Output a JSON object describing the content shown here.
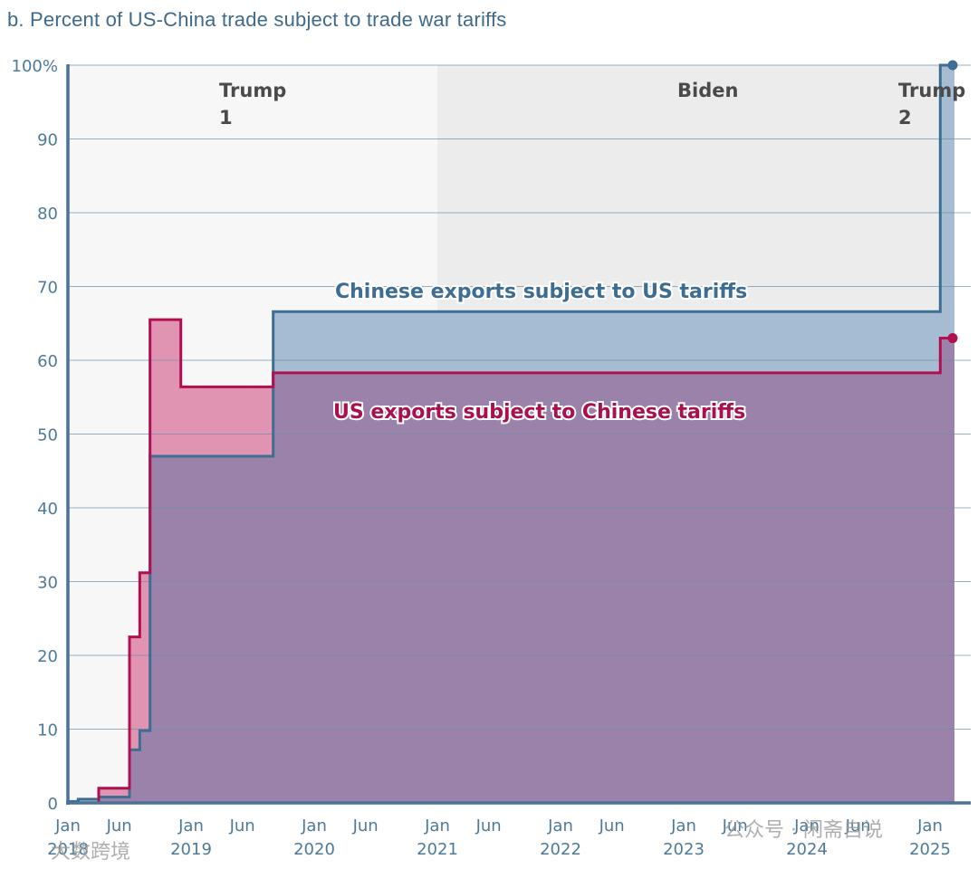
{
  "title": "b. Percent of US-China trade subject to trade war tariffs",
  "colors": {
    "blue_line": "#3f6d93",
    "blue_fill": "#a6bcd2",
    "pink_line": "#b0104f",
    "pink_fill": "#e094b2",
    "overlap_fill": "#9a82aa",
    "trump1_bg": "#f7f7f8",
    "biden_bg": "#ececed",
    "axis": "#4a7296",
    "grid": "#6e8fa8",
    "tick_text": "#4c7a9a"
  },
  "eras": [
    {
      "label_line1": "Trump",
      "label_line2": "1"
    },
    {
      "label_line1": "Biden",
      "label_line2": ""
    },
    {
      "label_line1": "Trump",
      "label_line2": "2"
    }
  ],
  "series_labels": {
    "chinese": "Chinese exports subject to US tariffs",
    "us": "US exports subject to Chinese tariffs"
  },
  "watermarks": {
    "left": "大数跨境",
    "right": "公众号 · 闲斋自说"
  },
  "chart_data": {
    "type": "area",
    "title": "b. Percent of US-China trade subject to trade war tariffs",
    "xlabel": "",
    "ylabel": "",
    "ylim": [
      0,
      100
    ],
    "yticks": [
      "0",
      "10",
      "20",
      "30",
      "40",
      "50",
      "60",
      "70",
      "80",
      "90",
      "100%"
    ],
    "xticks": [
      {
        "month": "Jan",
        "year": "2018"
      },
      {
        "month": "Jun",
        "year": ""
      },
      {
        "month": "Jan",
        "year": "2019"
      },
      {
        "month": "Jun",
        "year": ""
      },
      {
        "month": "Jan",
        "year": "2020"
      },
      {
        "month": "Jun",
        "year": ""
      },
      {
        "month": "Jan",
        "year": "2021"
      },
      {
        "month": "Jun",
        "year": ""
      },
      {
        "month": "Jan",
        "year": "2022"
      },
      {
        "month": "Jun",
        "year": ""
      },
      {
        "month": "Jan",
        "year": "2023"
      },
      {
        "month": "Jun",
        "year": ""
      },
      {
        "month": "Jan",
        "year": "2024"
      },
      {
        "month": "Jun",
        "year": ""
      },
      {
        "month": "Jan",
        "year": "2025"
      }
    ],
    "grid": true,
    "eras": [
      {
        "name": "Trump 1",
        "start": "2018-01",
        "end": "2021-01"
      },
      {
        "name": "Biden",
        "start": "2021-01",
        "end": "2025-01"
      },
      {
        "name": "Trump 2",
        "start": "2025-01",
        "end": "2025-03"
      }
    ],
    "series": [
      {
        "name": "Chinese exports subject to US tariffs",
        "step": true,
        "points": [
          [
            "2018-01",
            0.2
          ],
          [
            "2018-02",
            0.5
          ],
          [
            "2018-04",
            0.8
          ],
          [
            "2018-07",
            7.2
          ],
          [
            "2018-08",
            9.8
          ],
          [
            "2018-09",
            47.0
          ],
          [
            "2019-09",
            66.6
          ],
          [
            "2025-02",
            100.0
          ],
          [
            "2025-03",
            100.0
          ]
        ]
      },
      {
        "name": "US exports subject to Chinese tariffs",
        "step": true,
        "points": [
          [
            "2018-01",
            0.0
          ],
          [
            "2018-04",
            2.0
          ],
          [
            "2018-07",
            22.5
          ],
          [
            "2018-08",
            31.2
          ],
          [
            "2018-09",
            65.5
          ],
          [
            "2018-12",
            56.4
          ],
          [
            "2019-09",
            58.3
          ],
          [
            "2025-02",
            63.0
          ],
          [
            "2025-03",
            63.0
          ]
        ]
      }
    ]
  }
}
